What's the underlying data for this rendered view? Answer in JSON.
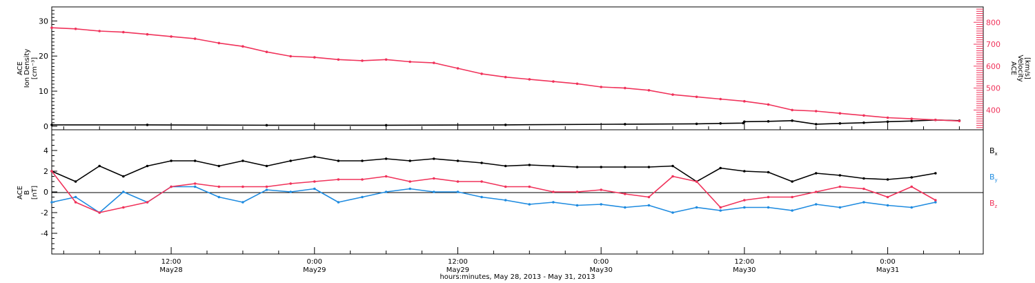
{
  "colors": {
    "black": "#000000",
    "pink": "#f0325a",
    "blue": "#1e8be0"
  },
  "x_axis": {
    "title": "hours:minutes, May 28, 2013 - May 31, 2013",
    "ticks": [
      {
        "hours": 12,
        "time": "12:00",
        "date": "May28"
      },
      {
        "hours": 24,
        "time": "0:00",
        "date": "May29"
      },
      {
        "hours": 36,
        "time": "12:00",
        "date": "May29"
      },
      {
        "hours": 48,
        "time": "0:00",
        "date": "May30"
      },
      {
        "hours": 60,
        "time": "12:00",
        "date": "May30"
      },
      {
        "hours": 72,
        "time": "0:00",
        "date": "May31"
      }
    ]
  },
  "chart_data": [
    {
      "type": "scatter",
      "panel": "plasma",
      "xlabel": "hours:minutes, May 28, 2013 - May 31, 2013",
      "xlim_hours": [
        2,
        80
      ],
      "left_axis": {
        "label_lines": [
          "ACE",
          "Ion Density",
          "[cm⁻³]"
        ],
        "ylim": [
          -1,
          34
        ],
        "ticks": [
          0,
          10,
          20,
          30
        ]
      },
      "right_axis": {
        "label_lines": [
          "ACE",
          "Velocity",
          "[km/s]"
        ],
        "ylim": [
          310,
          870
        ],
        "ticks": [
          400,
          500,
          600,
          700,
          800
        ]
      },
      "series": [
        {
          "axis": "right",
          "color": "pink",
          "x": [
            2,
            4,
            6,
            8,
            10,
            12,
            14,
            16,
            18,
            20,
            22,
            24,
            26,
            28,
            30,
            32,
            34,
            36,
            38,
            40,
            42,
            44,
            46,
            48,
            50,
            52,
            54,
            56,
            58,
            60,
            62,
            64,
            66,
            68,
            70,
            72,
            74,
            76,
            78
          ],
          "y": [
            775,
            770,
            760,
            755,
            745,
            735,
            725,
            705,
            690,
            665,
            645,
            640,
            630,
            625,
            630,
            620,
            615,
            590,
            565,
            550,
            540,
            530,
            520,
            505,
            500,
            490,
            470,
            460,
            450,
            440,
            425,
            400,
            395,
            385,
            375,
            365,
            360,
            355,
            350
          ]
        },
        {
          "axis": "left",
          "color": "black",
          "x": [
            2,
            10,
            20,
            30,
            40,
            50,
            56,
            58,
            59.9,
            60,
            62,
            64,
            66,
            68,
            70,
            72,
            74,
            76,
            78
          ],
          "y": [
            0.4,
            0.4,
            0.3,
            0.3,
            0.4,
            0.6,
            0.7,
            0.8,
            0.9,
            1.3,
            1.4,
            1.6,
            0.6,
            0.8,
            1.0,
            1.3,
            1.5,
            1.8,
            1.6
          ]
        }
      ]
    },
    {
      "type": "scatter",
      "panel": "magnetic-field",
      "xlabel": "hours:minutes, May 28, 2013 - May 31, 2013",
      "xlim_hours": [
        2,
        80
      ],
      "ylabel_lines": [
        "ACE",
        "B",
        "[nT]"
      ],
      "ylim": [
        -6,
        6
      ],
      "ticks": [
        -4,
        -2,
        0,
        2,
        4
      ],
      "legend_placement": "right",
      "series": [
        {
          "name": "Bx",
          "legend_main": "B",
          "legend_sub": "x",
          "color": "black",
          "x": [
            2,
            4,
            6,
            8,
            10,
            12,
            14,
            16,
            18,
            20,
            22,
            24,
            26,
            28,
            30,
            32,
            34,
            36,
            38,
            40,
            42,
            44,
            46,
            48,
            50,
            52,
            54,
            56,
            58,
            60,
            62,
            64,
            66,
            68,
            70,
            72,
            74,
            76
          ],
          "y": [
            2.0,
            1.0,
            2.5,
            1.5,
            2.5,
            3.0,
            3.0,
            2.5,
            3.0,
            2.5,
            3.0,
            3.4,
            3.0,
            3.0,
            3.2,
            3.0,
            3.2,
            3.0,
            2.8,
            2.5,
            2.6,
            2.5,
            2.4,
            2.4,
            2.4,
            2.4,
            2.5,
            1.0,
            2.3,
            2.0,
            1.9,
            1.0,
            1.8,
            1.6,
            1.3,
            1.2,
            1.4,
            1.8
          ]
        },
        {
          "name": "By",
          "legend_main": "B",
          "legend_sub": "y",
          "color": "blue",
          "x": [
            2,
            4,
            6,
            8,
            10,
            12,
            14,
            16,
            18,
            20,
            22,
            24,
            26,
            28,
            30,
            32,
            34,
            36,
            38,
            40,
            42,
            44,
            46,
            48,
            50,
            52,
            54,
            56,
            58,
            60,
            62,
            64,
            66,
            68,
            70,
            72,
            74,
            76
          ],
          "y": [
            -1.0,
            -0.5,
            -2.0,
            0.0,
            -1.0,
            0.5,
            0.5,
            -0.5,
            -1.0,
            0.2,
            0.0,
            0.3,
            -1.0,
            -0.5,
            0.0,
            0.3,
            0.0,
            0.0,
            -0.5,
            -0.8,
            -1.2,
            -1.0,
            -1.3,
            -1.2,
            -1.5,
            -1.3,
            -2.0,
            -1.5,
            -1.8,
            -1.5,
            -1.5,
            -1.8,
            -1.2,
            -1.5,
            -1.0,
            -1.3,
            -1.5,
            -1.0
          ]
        },
        {
          "name": "Bz",
          "legend_main": "B",
          "legend_sub": "z",
          "color": "pink",
          "x": [
            2,
            4,
            6,
            8,
            10,
            12,
            14,
            16,
            18,
            20,
            22,
            24,
            26,
            28,
            30,
            32,
            34,
            36,
            38,
            40,
            42,
            44,
            46,
            48,
            50,
            52,
            54,
            56,
            58,
            60,
            62,
            64,
            66,
            68,
            70,
            72,
            74,
            76
          ],
          "y": [
            2.0,
            -1.0,
            -2.0,
            -1.5,
            -1.0,
            0.5,
            0.8,
            0.5,
            0.5,
            0.5,
            0.8,
            1.0,
            1.2,
            1.2,
            1.5,
            1.0,
            1.3,
            1.0,
            1.0,
            0.5,
            0.5,
            0.0,
            0.0,
            0.2,
            -0.2,
            -0.5,
            1.5,
            1.0,
            -1.5,
            -0.8,
            -0.5,
            -0.5,
            0.0,
            0.5,
            0.3,
            -0.5,
            0.5,
            -0.8
          ]
        }
      ]
    }
  ]
}
